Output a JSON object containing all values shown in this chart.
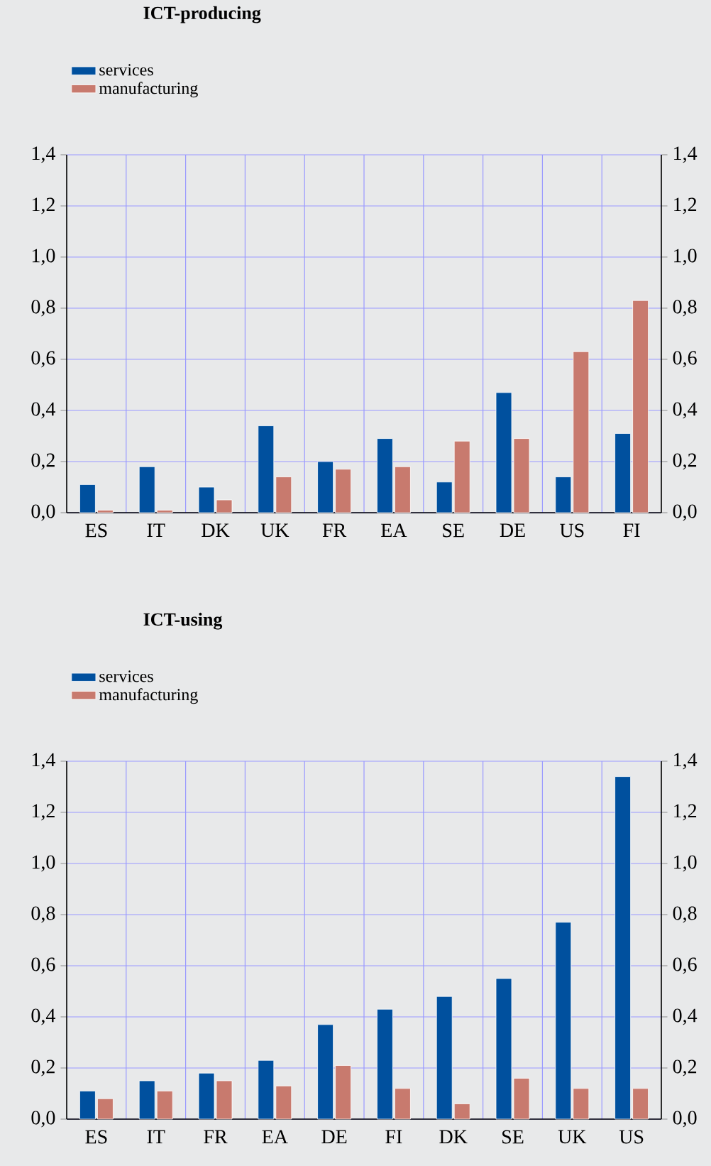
{
  "chart_data": [
    {
      "type": "bar",
      "title": "ICT-producing",
      "categories": [
        "ES",
        "IT",
        "DK",
        "UK",
        "FR",
        "EA",
        "SE",
        "DE",
        "US",
        "FI"
      ],
      "series": [
        {
          "name": "services",
          "color": "#00509e",
          "values": [
            0.11,
            0.18,
            0.1,
            0.34,
            0.2,
            0.29,
            0.12,
            0.47,
            0.14,
            0.31
          ]
        },
        {
          "name": "manufacturing",
          "color": "#c87a6e",
          "values": [
            0.01,
            0.01,
            0.05,
            0.14,
            0.17,
            0.18,
            0.28,
            0.29,
            0.63,
            0.83
          ]
        }
      ],
      "ylim": [
        0,
        1.4
      ],
      "yticks": [
        {
          "value": 0,
          "label": "0,0"
        },
        {
          "value": 0.2,
          "label": "0,2"
        },
        {
          "value": 0.4,
          "label": "0,4"
        },
        {
          "value": 0.6,
          "label": "0,6"
        },
        {
          "value": 0.8,
          "label": "0,8"
        },
        {
          "value": 1.0,
          "label": "1,0"
        },
        {
          "value": 1.2,
          "label": "1,2"
        },
        {
          "value": 1.4,
          "label": "1,4"
        }
      ],
      "y2lim": [
        0,
        1.4
      ],
      "y2ticks": [
        {
          "value": 0,
          "label": "0,0"
        },
        {
          "value": 0.2,
          "label": "0,2"
        },
        {
          "value": 0.4,
          "label": "0,4"
        },
        {
          "value": 0.6,
          "label": "0,6"
        },
        {
          "value": 0.8,
          "label": "0,8"
        },
        {
          "value": 1.0,
          "label": "1,0"
        },
        {
          "value": 1.2,
          "label": "1,2"
        },
        {
          "value": 1.4,
          "label": "1,4"
        }
      ],
      "grid": true,
      "legend": "top left"
    },
    {
      "type": "bar",
      "title": "ICT-using",
      "categories": [
        "ES",
        "IT",
        "FR",
        "EA",
        "DE",
        "FI",
        "DK",
        "SE",
        "UK",
        "US"
      ],
      "series": [
        {
          "name": "services",
          "color": "#00509e",
          "values": [
            0.11,
            0.15,
            0.18,
            0.23,
            0.37,
            0.43,
            0.48,
            0.55,
            0.77,
            1.34
          ]
        },
        {
          "name": "manufacturing",
          "color": "#c87a6e",
          "values": [
            0.08,
            0.11,
            0.15,
            0.13,
            0.21,
            0.12,
            0.06,
            0.16,
            0.12,
            0.12
          ]
        }
      ],
      "ylim": [
        0,
        1.4
      ],
      "yticks": [
        {
          "value": 0,
          "label": "0,0"
        },
        {
          "value": 0.2,
          "label": "0,2"
        },
        {
          "value": 0.4,
          "label": "0,4"
        },
        {
          "value": 0.6,
          "label": "0,6"
        },
        {
          "value": 0.8,
          "label": "0,8"
        },
        {
          "value": 1.0,
          "label": "1,0"
        },
        {
          "value": 1.2,
          "label": "1,2"
        },
        {
          "value": 1.4,
          "label": "1,4"
        }
      ],
      "y2lim": [
        0,
        1.4
      ],
      "y2ticks": [
        {
          "value": 0,
          "label": "0,0"
        },
        {
          "value": 0.2,
          "label": "0,2"
        },
        {
          "value": 0.4,
          "label": "0,4"
        },
        {
          "value": 0.6,
          "label": "0,6"
        },
        {
          "value": 0.8,
          "label": "0,8"
        },
        {
          "value": 1.0,
          "label": "1,0"
        },
        {
          "value": 1.2,
          "label": "1,2"
        },
        {
          "value": 1.4,
          "label": "1,4"
        }
      ],
      "grid": true,
      "legend": "top left"
    }
  ]
}
